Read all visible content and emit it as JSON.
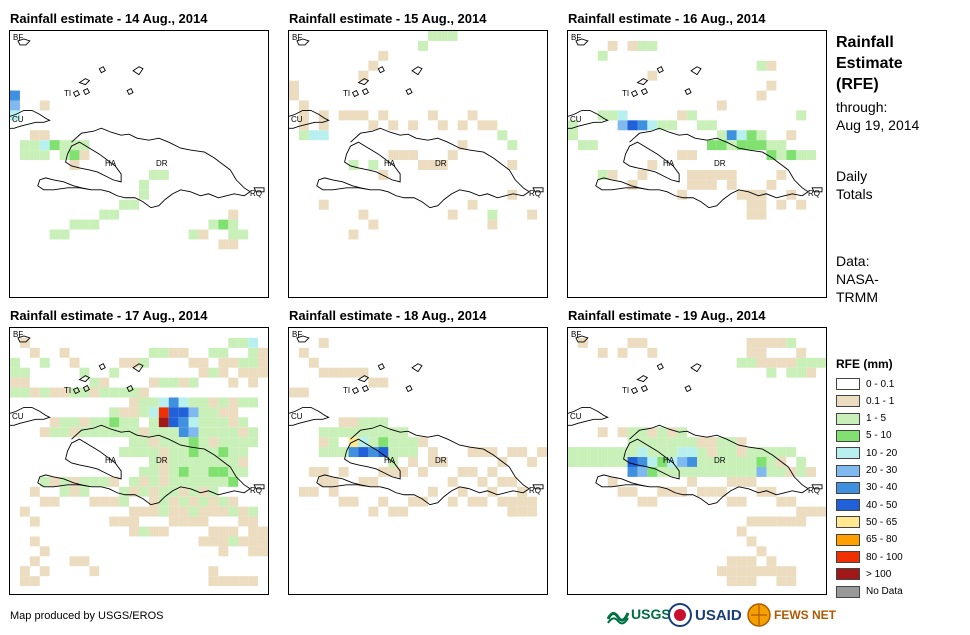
{
  "panels": [
    {
      "title": "Rainfall estimate - 14 Aug., 2014"
    },
    {
      "title": "Rainfall estimate - 15 Aug., 2014"
    },
    {
      "title": "Rainfall estimate - 16 Aug., 2014"
    },
    {
      "title": "Rainfall estimate - 17 Aug., 2014"
    },
    {
      "title": "Rainfall estimate - 18 Aug., 2014"
    },
    {
      "title": "Rainfall estimate - 19 Aug., 2014"
    }
  ],
  "map_labels": {
    "bf": "BF",
    "ti": "TI",
    "cu": "CU",
    "ha": "HA",
    "dr": "DR",
    "rq": "RQ"
  },
  "side": {
    "title1": "Rainfall",
    "title2": "Estimate",
    "title3": "(RFE)",
    "through1": "through:",
    "through2": "Aug 19, 2014",
    "daily1": "Daily",
    "daily2": "Totals",
    "data1": "Data:",
    "data2": "NASA-",
    "data3": "TRMM"
  },
  "legend": {
    "title": "RFE (mm)",
    "items": [
      {
        "label": "0 - 0.1",
        "color": "#ffffff"
      },
      {
        "label": "0.1 - 1",
        "color": "#ecdcc0"
      },
      {
        "label": "1 - 5",
        "color": "#c8f0b8"
      },
      {
        "label": "5 - 10",
        "color": "#80e070"
      },
      {
        "label": "10 - 20",
        "color": "#b8f0f0"
      },
      {
        "label": "20 - 30",
        "color": "#80b8f0"
      },
      {
        "label": "30 - 40",
        "color": "#4090e0"
      },
      {
        "label": "40 - 50",
        "color": "#2060d8"
      },
      {
        "label": "50 - 65",
        "color": "#ffe890"
      },
      {
        "label": "65 - 80",
        "color": "#ffa000"
      },
      {
        "label": "80 - 100",
        "color": "#f03000"
      },
      {
        "label": "> 100",
        "color": "#a01818"
      },
      {
        "label": "No Data",
        "color": "#999999"
      }
    ]
  },
  "footer": {
    "produced_by": "Map produced by USGS/EROS"
  },
  "logos": {
    "usgs": "USGS",
    "usaid": "USAID",
    "fewsnet": "FEWS NET"
  }
}
